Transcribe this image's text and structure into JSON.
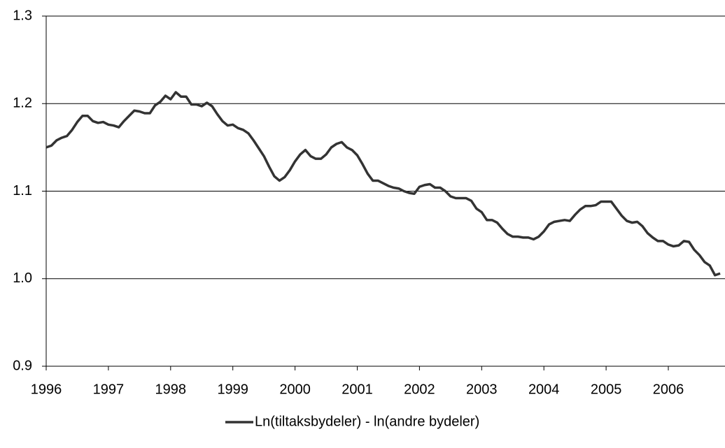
{
  "chart_data": {
    "type": "line",
    "categories": [
      "1996",
      null,
      null,
      null,
      null,
      null,
      null,
      null,
      null,
      null,
      null,
      null,
      "1997",
      null,
      null,
      null,
      null,
      null,
      null,
      null,
      null,
      null,
      null,
      null,
      "1998",
      null,
      null,
      null,
      null,
      null,
      null,
      null,
      null,
      null,
      null,
      null,
      "1999",
      null,
      null,
      null,
      null,
      null,
      null,
      null,
      null,
      null,
      null,
      null,
      "2000",
      null,
      null,
      null,
      null,
      null,
      null,
      null,
      null,
      null,
      null,
      null,
      "2001",
      null,
      null,
      null,
      null,
      null,
      null,
      null,
      null,
      null,
      null,
      null,
      "2002",
      null,
      null,
      null,
      null,
      null,
      null,
      null,
      null,
      null,
      null,
      null,
      "2003",
      null,
      null,
      null,
      null,
      null,
      null,
      null,
      null,
      null,
      null,
      null,
      "2004",
      null,
      null,
      null,
      null,
      null,
      null,
      null,
      null,
      null,
      null,
      null,
      "2005",
      null,
      null,
      null,
      null,
      null,
      null,
      null,
      null,
      null,
      null,
      null,
      "2006",
      null,
      null,
      null,
      null,
      null,
      null,
      null,
      null,
      null,
      null
    ],
    "series": [
      {
        "name": "Ln(tiltaksbydeler) - ln(andre bydeler)",
        "color": "#333333",
        "values": [
          1.15,
          1.152,
          1.158,
          1.161,
          1.163,
          1.17,
          1.179,
          1.186,
          1.186,
          1.18,
          1.178,
          1.179,
          1.176,
          1.175,
          1.173,
          1.18,
          1.186,
          1.192,
          1.191,
          1.189,
          1.189,
          1.198,
          1.202,
          1.209,
          1.205,
          1.213,
          1.208,
          1.208,
          1.199,
          1.199,
          1.197,
          1.201,
          1.197,
          1.188,
          1.18,
          1.175,
          1.176,
          1.172,
          1.17,
          1.166,
          1.158,
          1.149,
          1.14,
          1.128,
          1.117,
          1.112,
          1.116,
          1.124,
          1.134,
          1.142,
          1.147,
          1.14,
          1.137,
          1.137,
          1.142,
          1.15,
          1.154,
          1.156,
          1.15,
          1.147,
          1.141,
          1.131,
          1.12,
          1.112,
          1.112,
          1.109,
          1.106,
          1.104,
          1.103,
          1.1,
          1.098,
          1.097,
          1.105,
          1.107,
          1.108,
          1.104,
          1.104,
          1.1,
          1.094,
          1.092,
          1.092,
          1.092,
          1.089,
          1.08,
          1.076,
          1.067,
          1.067,
          1.064,
          1.057,
          1.051,
          1.048,
          1.048,
          1.047,
          1.047,
          1.045,
          1.048,
          1.054,
          1.062,
          1.065,
          1.066,
          1.067,
          1.066,
          1.073,
          1.079,
          1.083,
          1.083,
          1.084,
          1.088,
          1.088,
          1.088,
          1.08,
          1.072,
          1.066,
          1.064,
          1.065,
          1.06,
          1.052,
          1.047,
          1.043,
          1.043,
          1.039,
          1.037,
          1.038,
          1.043,
          1.042,
          1.033,
          1.027,
          1.019,
          1.015,
          1.004,
          1.006
        ]
      }
    ],
    "ylim": [
      0.9,
      1.3
    ],
    "yticks": [
      0.9,
      {
        "value": 1,
        "label": "1.0"
      },
      1.1,
      1.2,
      1.3
    ],
    "grid": true,
    "legend": "bottom"
  }
}
